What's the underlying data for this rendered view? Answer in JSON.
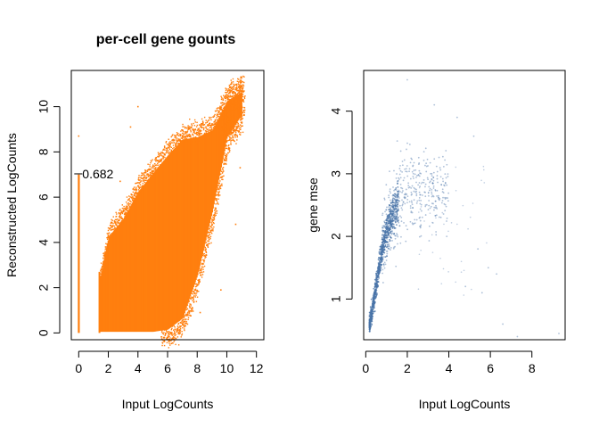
{
  "chart_data": [
    {
      "type": "scatter",
      "title": "per-cell gene gounts",
      "xlabel": "Input LogCounts",
      "ylabel": "Reconstructed LogCounts",
      "xlim": [
        -0.5,
        12.5
      ],
      "ylim": [
        -0.3,
        11.6
      ],
      "xticks": [
        0,
        2,
        4,
        6,
        8,
        10,
        12
      ],
      "yticks": [
        0,
        2,
        4,
        6,
        8,
        10
      ],
      "point_color": "#ff7f0e",
      "annotation": {
        "text": "0.682",
        "x": 0,
        "y": 7.03
      },
      "zero_column": {
        "x": 0,
        "y_min": 0,
        "y_max": 7.0
      },
      "dense_region_left_edge_x": 1.4,
      "dense_region_left_edge_ymax": 2.7,
      "band": [
        {
          "x": 1.4,
          "low": 0.0,
          "high": 2.7
        },
        {
          "x": 2.0,
          "low": 0.0,
          "high": 4.6
        },
        {
          "x": 3.0,
          "low": 0.0,
          "high": 5.4
        },
        {
          "x": 4.0,
          "low": 0.0,
          "high": 6.6
        },
        {
          "x": 5.0,
          "low": 0.0,
          "high": 7.4
        },
        {
          "x": 6.0,
          "low": 0.1,
          "high": 8.2
        },
        {
          "x": 7.0,
          "low": 0.6,
          "high": 8.9
        },
        {
          "x": 8.0,
          "low": 2.5,
          "high": 9.0
        },
        {
          "x": 9.0,
          "low": 5.3,
          "high": 9.3
        },
        {
          "x": 10.0,
          "low": 8.6,
          "high": 10.6
        },
        {
          "x": 11.0,
          "low": 9.6,
          "high": 11.0
        }
      ],
      "notable_points": [
        {
          "x": 0.0,
          "y": 8.7
        },
        {
          "x": 4.0,
          "y": 10.0
        },
        {
          "x": 3.5,
          "y": 9.1
        },
        {
          "x": 2.8,
          "y": 6.7
        },
        {
          "x": 9.6,
          "y": 1.9
        },
        {
          "x": 8.2,
          "y": 0.9
        },
        {
          "x": 10.9,
          "y": 7.3
        },
        {
          "x": 10.6,
          "y": 4.8
        }
      ]
    },
    {
      "type": "scatter",
      "xlabel": "Input LogCounts",
      "ylabel": "gene mse",
      "xlim": [
        -0.1,
        9.6
      ],
      "ylim": [
        0.35,
        4.65
      ],
      "xticks": [
        0,
        2,
        4,
        6,
        8
      ],
      "yticks": [
        1,
        2,
        3,
        4
      ],
      "point_color": "#4a74a8",
      "trend": [
        {
          "x": 0.2,
          "y": 0.6
        },
        {
          "x": 0.4,
          "y": 1.0
        },
        {
          "x": 0.6,
          "y": 1.4
        },
        {
          "x": 0.8,
          "y": 1.8
        },
        {
          "x": 1.0,
          "y": 2.1
        },
        {
          "x": 1.5,
          "y": 2.5
        },
        {
          "x": 2.0,
          "y": 2.7
        },
        {
          "x": 3.0,
          "y": 2.8
        }
      ],
      "outliers": [
        {
          "x": 2.0,
          "y": 4.5
        },
        {
          "x": 3.3,
          "y": 4.1
        },
        {
          "x": 4.4,
          "y": 3.9
        },
        {
          "x": 5.2,
          "y": 3.6
        },
        {
          "x": 5.4,
          "y": 1.8
        },
        {
          "x": 5.9,
          "y": 1.5
        },
        {
          "x": 6.3,
          "y": 1.4
        },
        {
          "x": 6.6,
          "y": 0.6
        },
        {
          "x": 7.3,
          "y": 0.4
        },
        {
          "x": 9.3,
          "y": 0.45
        },
        {
          "x": 4.8,
          "y": 1.2
        },
        {
          "x": 3.9,
          "y": 2.0
        },
        {
          "x": 5.6,
          "y": 1.1
        }
      ]
    }
  ]
}
